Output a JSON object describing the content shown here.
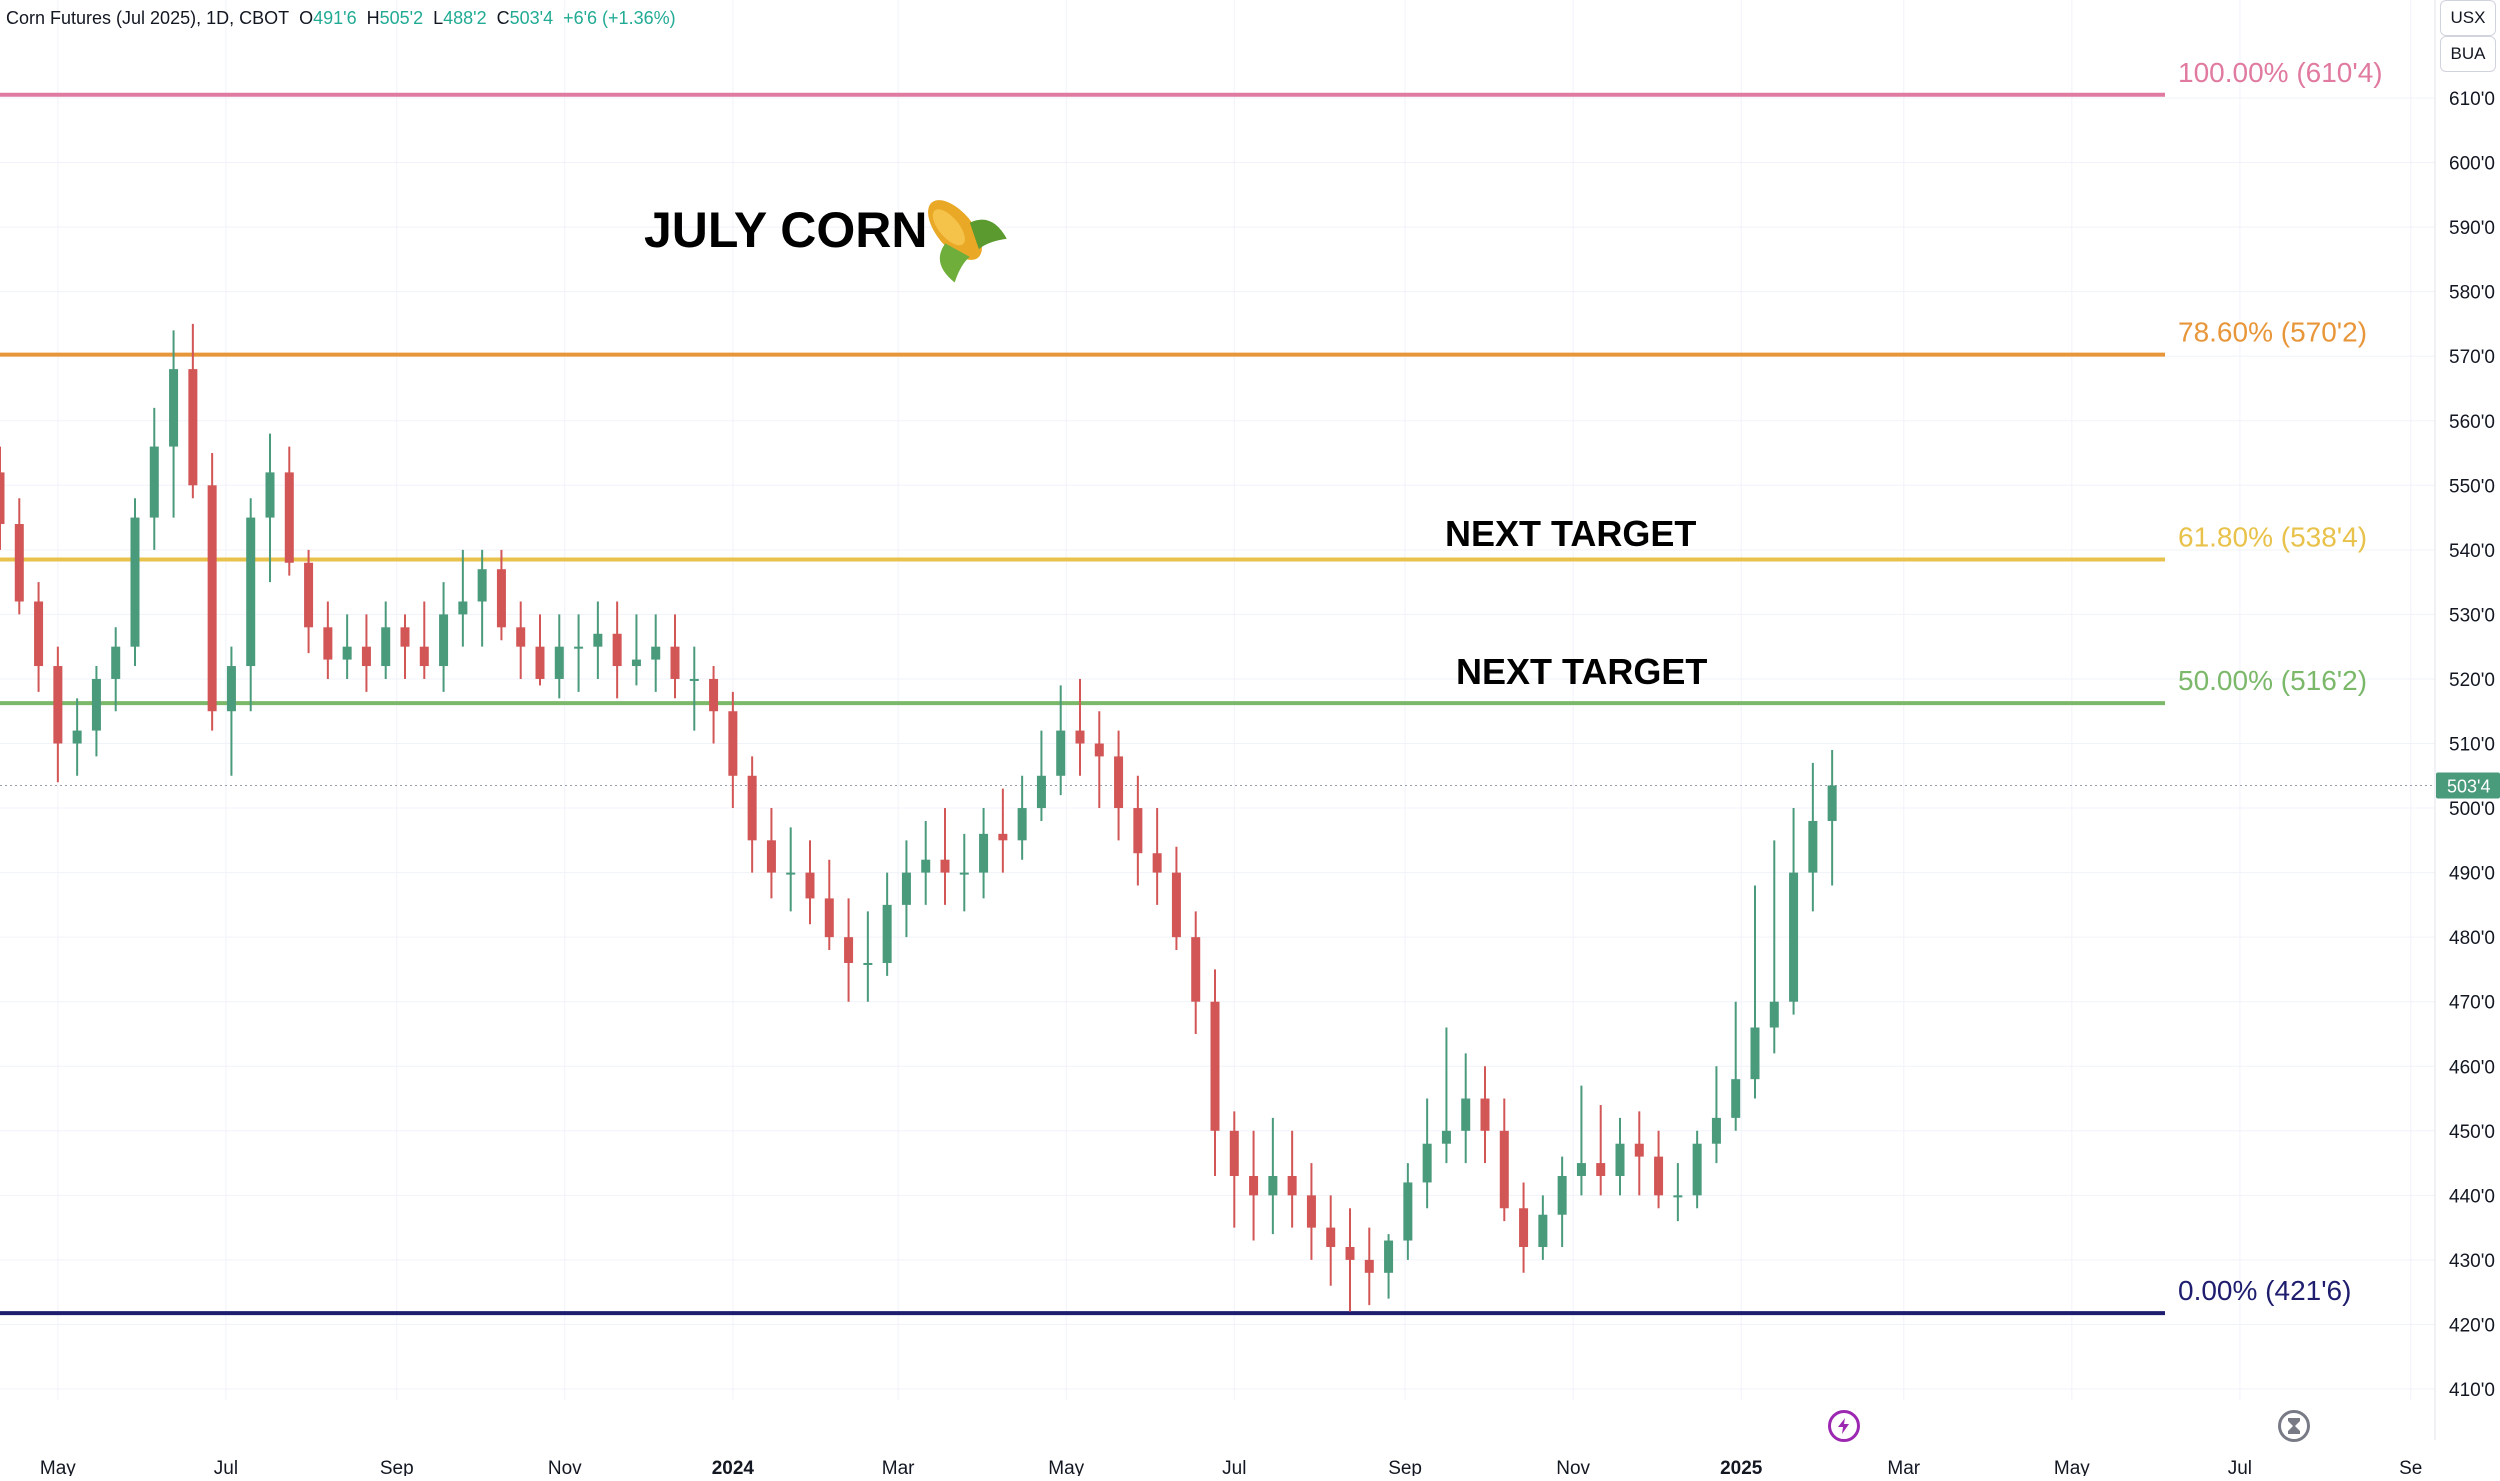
{
  "header": {
    "symbol_title": "Corn Futures (Jul 2025), 1D, CBOT",
    "open_label": "O",
    "open_value": "491'6",
    "high_label": "H",
    "high_value": "505'2",
    "low_label": "L",
    "low_value": "488'2",
    "close_label": "C",
    "close_value": "503'4",
    "change_value": "+6'6 (+1.36%)"
  },
  "units": {
    "currency": "USX",
    "unit": "BUA"
  },
  "colors": {
    "up": "#4a9a7c",
    "down": "#d25656",
    "fib_100": "#e07aa0",
    "fib_786": "#e8963a",
    "fib_618": "#e8c24a",
    "fib_50": "#7bb86a",
    "fib_0": "#1f1d6e",
    "price_tag": "#4a9a7c",
    "grid": "#f0f3fa"
  },
  "annotations": {
    "title": "JULY CORN",
    "target_upper": "NEXT TARGET",
    "target_lower": "NEXT TARGET"
  },
  "icons": {
    "title_icon": "corn-icon",
    "lightning": "lightning-icon",
    "hourglass": "hourglass-icon"
  },
  "chart_data": {
    "type": "candlestick",
    "price_scale": {
      "ylim": [
        403,
        618
      ],
      "ticks": [
        {
          "value": 410,
          "label": "410'0"
        },
        {
          "value": 420,
          "label": "420'0"
        },
        {
          "value": 430,
          "label": "430'0"
        },
        {
          "value": 440,
          "label": "440'0"
        },
        {
          "value": 450,
          "label": "450'0"
        },
        {
          "value": 460,
          "label": "460'0"
        },
        {
          "value": 470,
          "label": "470'0"
        },
        {
          "value": 480,
          "label": "480'0"
        },
        {
          "value": 490,
          "label": "490'0"
        },
        {
          "value": 500,
          "label": "500'0"
        },
        {
          "value": 510,
          "label": "510'0"
        },
        {
          "value": 520,
          "label": "520'0"
        },
        {
          "value": 530,
          "label": "530'0"
        },
        {
          "value": 540,
          "label": "540'0"
        },
        {
          "value": 550,
          "label": "550'0"
        },
        {
          "value": 560,
          "label": "560'0"
        },
        {
          "value": 570,
          "label": "570'0"
        },
        {
          "value": 580,
          "label": "580'0"
        },
        {
          "value": 590,
          "label": "590'0"
        },
        {
          "value": 600,
          "label": "600'0"
        },
        {
          "value": 610,
          "label": "610'0"
        }
      ]
    },
    "time_axis": {
      "range": [
        "2023-04-10",
        "2025-09-08"
      ],
      "ticks": [
        {
          "date": "2023-05-01",
          "label": "May",
          "year": false
        },
        {
          "date": "2023-07-01",
          "label": "Jul",
          "year": false
        },
        {
          "date": "2023-09-01",
          "label": "Sep",
          "year": false
        },
        {
          "date": "2023-11-01",
          "label": "Nov",
          "year": false
        },
        {
          "date": "2024-01-01",
          "label": "2024",
          "year": true
        },
        {
          "date": "2024-03-01",
          "label": "Mar",
          "year": false
        },
        {
          "date": "2024-05-01",
          "label": "May",
          "year": false
        },
        {
          "date": "2024-07-01",
          "label": "Jul",
          "year": false
        },
        {
          "date": "2024-09-01",
          "label": "Sep",
          "year": false
        },
        {
          "date": "2024-11-01",
          "label": "Nov",
          "year": false
        },
        {
          "date": "2025-01-01",
          "label": "2025",
          "year": true
        },
        {
          "date": "2025-03-01",
          "label": "Mar",
          "year": false
        },
        {
          "date": "2025-05-01",
          "label": "May",
          "year": false
        },
        {
          "date": "2025-07-01",
          "label": "Jul",
          "year": false
        },
        {
          "date": "2025-09-01",
          "label": "Se",
          "year": false
        }
      ]
    },
    "fib_levels": [
      {
        "ratio": "100.00%",
        "price": 610.5,
        "label": "100.00% (610'4)",
        "color_key": "fib_100"
      },
      {
        "ratio": "78.60%",
        "price": 570.25,
        "label": "78.60% (570'2)",
        "color_key": "fib_786"
      },
      {
        "ratio": "61.80%",
        "price": 538.5,
        "label": "61.80% (538'4)",
        "color_key": "fib_618"
      },
      {
        "ratio": "50.00%",
        "price": 516.25,
        "label": "50.00% (516'2)",
        "color_key": "fib_50"
      },
      {
        "ratio": "0.00%",
        "price": 421.75,
        "label": "0.00% (421'6)",
        "color_key": "fib_0"
      }
    ],
    "last_price": {
      "value": 503.5,
      "label": "503'4"
    },
    "series": {
      "date": [
        "2023-04-10",
        "2023-04-17",
        "2023-04-24",
        "2023-05-01",
        "2023-05-08",
        "2023-05-15",
        "2023-05-22",
        "2023-05-29",
        "2023-06-05",
        "2023-06-12",
        "2023-06-19",
        "2023-06-26",
        "2023-07-03",
        "2023-07-10",
        "2023-07-17",
        "2023-07-24",
        "2023-07-31",
        "2023-08-07",
        "2023-08-14",
        "2023-08-21",
        "2023-08-28",
        "2023-09-04",
        "2023-09-11",
        "2023-09-18",
        "2023-09-25",
        "2023-10-02",
        "2023-10-09",
        "2023-10-16",
        "2023-10-23",
        "2023-10-30",
        "2023-11-06",
        "2023-11-13",
        "2023-11-20",
        "2023-11-27",
        "2023-12-04",
        "2023-12-11",
        "2023-12-18",
        "2023-12-25",
        "2024-01-01",
        "2024-01-08",
        "2024-01-15",
        "2024-01-22",
        "2024-01-29",
        "2024-02-05",
        "2024-02-12",
        "2024-02-19",
        "2024-02-26",
        "2024-03-04",
        "2024-03-11",
        "2024-03-18",
        "2024-03-25",
        "2024-04-01",
        "2024-04-08",
        "2024-04-15",
        "2024-04-22",
        "2024-04-29",
        "2024-05-06",
        "2024-05-13",
        "2024-05-20",
        "2024-05-27",
        "2024-06-03",
        "2024-06-10",
        "2024-06-17",
        "2024-06-24",
        "2024-07-01",
        "2024-07-08",
        "2024-07-15",
        "2024-07-22",
        "2024-07-29",
        "2024-08-05",
        "2024-08-12",
        "2024-08-19",
        "2024-08-26",
        "2024-09-02",
        "2024-09-09",
        "2024-09-16",
        "2024-09-23",
        "2024-09-30",
        "2024-10-07",
        "2024-10-14",
        "2024-10-21",
        "2024-10-28",
        "2024-11-04",
        "2024-11-11",
        "2024-11-18",
        "2024-11-25",
        "2024-12-02",
        "2024-12-09",
        "2024-12-16",
        "2024-12-23",
        "2024-12-30",
        "2025-01-06",
        "2025-01-13",
        "2025-01-20",
        "2025-01-27",
        "2025-02-03"
      ],
      "open": [
        552,
        544,
        532,
        522,
        510,
        512,
        520,
        525,
        545,
        556,
        568,
        550,
        515,
        522,
        545,
        552,
        538,
        528,
        523,
        525,
        522,
        528,
        525,
        522,
        530,
        532,
        537,
        528,
        525,
        520,
        525,
        525,
        527,
        522,
        523,
        525,
        520,
        520,
        515,
        505,
        495,
        490,
        490,
        486,
        480,
        476,
        476,
        485,
        490,
        492,
        490,
        490,
        496,
        495,
        500,
        505,
        512,
        510,
        508,
        500,
        493,
        490,
        480,
        470,
        450,
        443,
        440,
        443,
        440,
        435,
        432,
        430,
        428,
        433,
        442,
        448,
        450,
        455,
        450,
        438,
        432,
        437,
        443,
        445,
        443,
        448,
        446,
        440,
        440,
        448,
        452,
        458,
        466,
        470,
        490,
        498
      ],
      "high": [
        556,
        548,
        535,
        525,
        517,
        522,
        528,
        548,
        562,
        574,
        575,
        555,
        525,
        548,
        558,
        556,
        540,
        532,
        530,
        530,
        532,
        530,
        532,
        535,
        540,
        540,
        540,
        532,
        530,
        530,
        530,
        532,
        532,
        530,
        530,
        530,
        525,
        522,
        518,
        508,
        500,
        497,
        495,
        492,
        486,
        484,
        490,
        495,
        498,
        500,
        496,
        500,
        503,
        505,
        512,
        519,
        520,
        515,
        512,
        505,
        500,
        494,
        484,
        475,
        453,
        450,
        452,
        450,
        445,
        440,
        438,
        435,
        434,
        445,
        455,
        466,
        462,
        460,
        455,
        442,
        440,
        446,
        457,
        454,
        452,
        453,
        450,
        445,
        450,
        460,
        470,
        488,
        495,
        500,
        507,
        509
      ],
      "low": [
        540,
        530,
        518,
        504,
        505,
        508,
        515,
        522,
        540,
        545,
        548,
        512,
        505,
        515,
        535,
        536,
        524,
        520,
        520,
        518,
        520,
        520,
        520,
        518,
        525,
        525,
        526,
        520,
        519,
        517,
        518,
        520,
        517,
        519,
        518,
        517,
        512,
        510,
        500,
        490,
        486,
        484,
        482,
        478,
        470,
        470,
        474,
        480,
        485,
        485,
        484,
        486,
        490,
        492,
        498,
        502,
        505,
        500,
        495,
        488,
        485,
        478,
        465,
        443,
        435,
        433,
        434,
        435,
        430,
        426,
        422,
        423,
        424,
        430,
        438,
        445,
        445,
        445,
        436,
        428,
        430,
        432,
        440,
        440,
        440,
        440,
        438,
        436,
        438,
        445,
        450,
        455,
        462,
        468,
        484,
        488
      ],
      "close": [
        544,
        532,
        522,
        510,
        512,
        520,
        525,
        545,
        556,
        568,
        550,
        515,
        522,
        545,
        552,
        538,
        528,
        523,
        525,
        522,
        528,
        525,
        522,
        530,
        532,
        537,
        528,
        525,
        520,
        525,
        525,
        527,
        522,
        523,
        525,
        520,
        520,
        515,
        505,
        495,
        490,
        490,
        486,
        480,
        476,
        476,
        485,
        490,
        492,
        490,
        490,
        496,
        495,
        500,
        505,
        512,
        510,
        508,
        500,
        493,
        490,
        480,
        470,
        450,
        443,
        440,
        443,
        440,
        435,
        432,
        430,
        428,
        433,
        442,
        448,
        450,
        455,
        450,
        438,
        432,
        437,
        443,
        445,
        443,
        448,
        446,
        440,
        440,
        448,
        452,
        458,
        466,
        470,
        490,
        498,
        503.5
      ]
    }
  }
}
